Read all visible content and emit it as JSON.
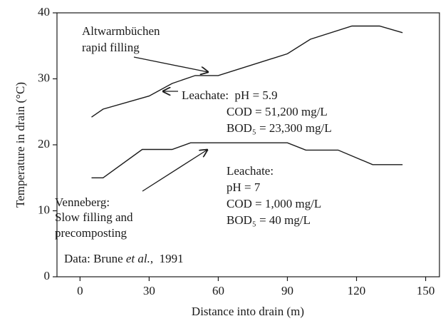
{
  "chart_data": {
    "type": "line",
    "x_label": "Distance into drain (m)",
    "y_label": "Temperature in drain (°C)",
    "xlim": [
      -10,
      156
    ],
    "xticks": [
      0,
      30,
      60,
      90,
      120,
      150
    ],
    "ylim": [
      0,
      40
    ],
    "yticks": [
      0,
      10,
      20,
      30,
      40
    ],
    "series": [
      {
        "color": "#1a1a1a",
        "x": [
          5,
          10,
          30,
          40,
          50,
          60,
          90,
          100,
          118,
          130,
          140
        ],
        "values": [
          24.2,
          25.4,
          27.4,
          29.3,
          30.5,
          30.5,
          33.8,
          36,
          38,
          38,
          37
        ]
      },
      {
        "color": "#1a1a1a",
        "x": [
          5,
          10,
          27,
          40,
          48,
          90,
          98,
          112,
          127,
          140
        ],
        "values": [
          15,
          15,
          19.3,
          19.3,
          20.3,
          20.3,
          19.2,
          19.2,
          17,
          17
        ]
      }
    ],
    "annotations": [
      "Altwarmbüchen",
      "rapid filling",
      "Leachate:  pH = 5.9",
      "COD = 51,200 mg/L",
      "BOD₅ = 23,300 mg/L",
      "Leachate:",
      "pH = 7",
      "COD = 1,000 mg/L",
      "BOD₅ = 40 mg/L",
      "Venneberg:",
      "Slow filling and",
      "precomposting"
    ],
    "source": [
      "Data: Brune ",
      "et al.",
      ",  1991"
    ]
  }
}
